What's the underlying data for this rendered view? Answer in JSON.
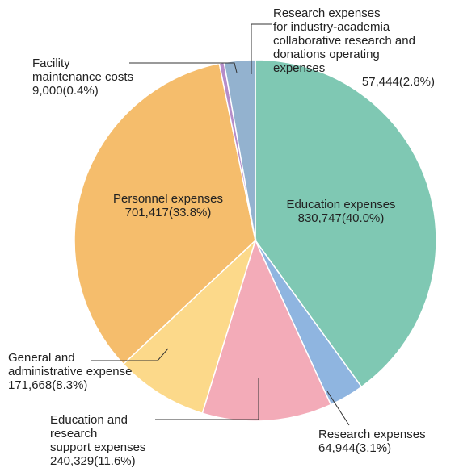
{
  "chart_data": {
    "type": "pie",
    "categories": [
      "Education expenses",
      "Research expenses",
      "Education and\nresearch\nsupport expenses",
      "General and\nadministrative expense",
      "Personnel expenses",
      "Facility\nmaintenance costs",
      "Research expenses\nfor industry-academia\ncollaborative research and\ndonations operating expenses"
    ],
    "values": [
      830747,
      64944,
      240329,
      171668,
      701417,
      9000,
      57444
    ],
    "value_labels": [
      "830,747",
      "64,944",
      "240,329",
      "171,668",
      "701,417",
      "9,000",
      "57,444"
    ],
    "percents": [
      40.0,
      3.1,
      11.6,
      8.3,
      33.8,
      0.4,
      2.8
    ],
    "percent_labels": [
      "(40.0%)",
      "(3.1%)",
      "(11.6%)",
      "(8.3%)",
      "(33.8%)",
      "(0.4%)",
      "(2.8%)"
    ],
    "colors": [
      "#7fc8b3",
      "#8fb5e0",
      "#f3abb8",
      "#fcd98a",
      "#f5bd6c",
      "#b68dc9",
      "#93b2cf"
    ]
  }
}
